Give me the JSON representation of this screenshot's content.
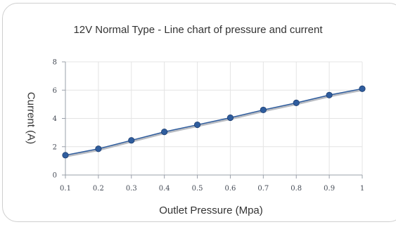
{
  "chart_data": {
    "type": "line",
    "title": "12V Normal Type - Line chart of pressure and current",
    "xlabel": "Outlet Pressure (Mpa)",
    "ylabel": "Current (A)",
    "x": [
      0.1,
      0.2,
      0.3,
      0.4,
      0.5,
      0.6,
      0.7,
      0.8,
      0.9,
      1
    ],
    "x_tick_labels": [
      "0.1",
      "0.2",
      "0.3",
      "0.4",
      "0.5",
      "0.6",
      "0.7",
      "0.8",
      "0.9",
      "1"
    ],
    "y_ticks": [
      0,
      2,
      4,
      6,
      8
    ],
    "y_tick_labels": [
      "0",
      "2",
      "4",
      "6",
      "8"
    ],
    "xlim": [
      0.1,
      1
    ],
    "ylim": [
      0,
      8
    ],
    "grid": true,
    "series": [
      {
        "values": [
          1.4,
          1.85,
          2.45,
          3.05,
          3.55,
          4.05,
          4.6,
          5.1,
          5.65,
          6.1
        ],
        "color": "#2f5d9e"
      }
    ]
  }
}
